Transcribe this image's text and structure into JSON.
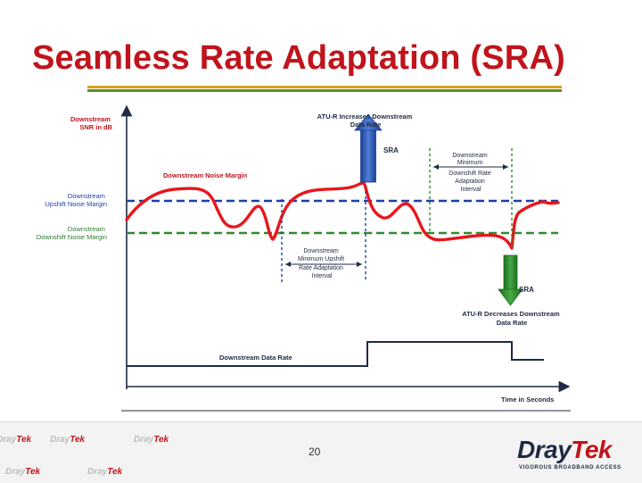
{
  "slide": {
    "title": "Seamless Rate Adaptation (SRA)",
    "page_number": "20"
  },
  "diagram": {
    "y_axis_label": [
      "Downstream",
      "SNR in dB"
    ],
    "upshift_label": [
      "Downstream",
      "Upshift Noise Margin"
    ],
    "downshift_label": [
      "Downstream",
      "Downshift Noise Margin"
    ],
    "noise_margin_label": "Downstream Noise Margin",
    "increase_label": [
      "ATU-R Increases Downstream",
      "Data Rate"
    ],
    "sra_up": "SRA",
    "sra_down": "SRA",
    "downshift_interval_label": [
      "Downstream",
      "Minimum",
      "Downshift Rate",
      "Adaptation",
      "Interval"
    ],
    "upshift_interval_label": [
      "Downstream",
      "Minimum Upshift",
      "Rate Adaptation",
      "Interval"
    ],
    "decrease_label": [
      "ATU-R Decreases Downstream",
      "Data Rate"
    ],
    "data_rate_label": "Downstream Data Rate",
    "x_axis_label": "Time in Seconds"
  },
  "colors": {
    "title": "#c0141c",
    "noise_curve": "#e8161c",
    "upshift_line": "#1d3ea8",
    "downshift_line": "#2e8b2e",
    "sra_up_arrow": "#2d58b8",
    "sra_down_arrow": "#2e8b2e"
  },
  "footer": {
    "brand": "Dray",
    "brand_accent": "Tek",
    "tagline": "VIGOROUS BROADBAND ACCESS"
  }
}
